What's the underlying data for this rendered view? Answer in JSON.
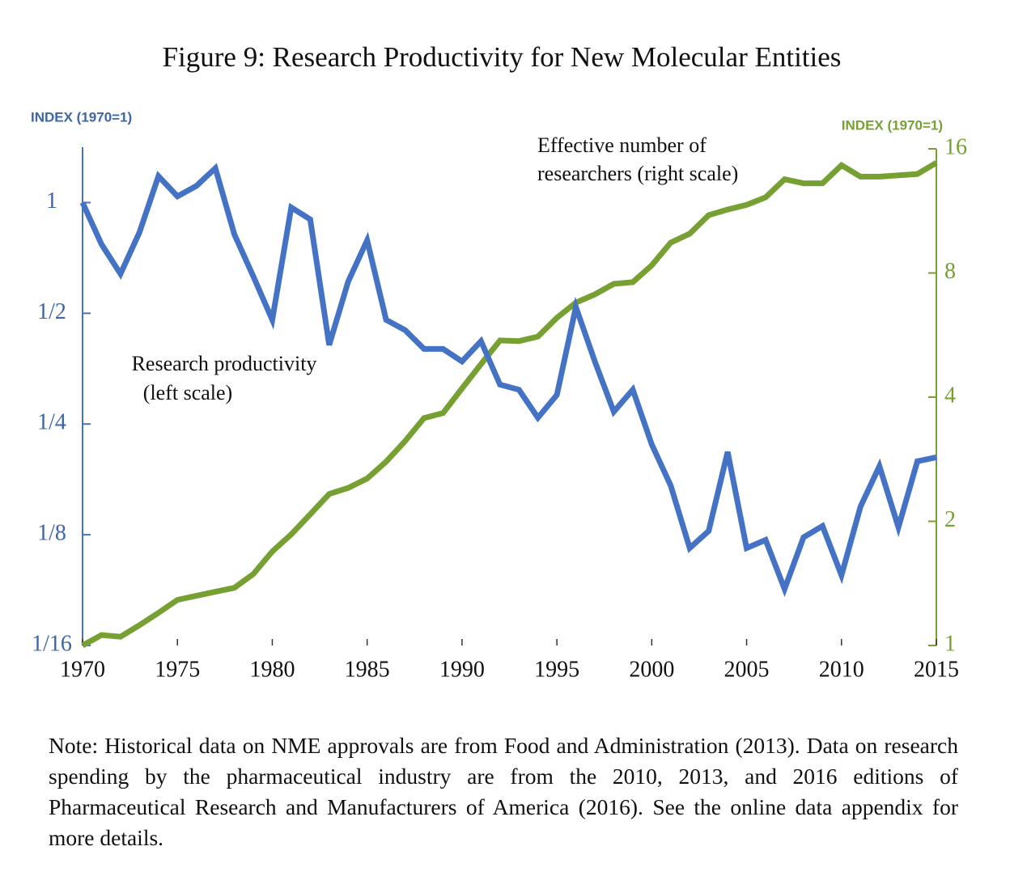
{
  "chart_data": {
    "type": "line",
    "title": "Figure 9: Research Productivity for New Molecular Entities",
    "y_label": "INDEX (1970=1)",
    "y2_label": "INDEX (1970=1)",
    "annotations": [
      {
        "lines": [
          "Effective number of",
          "researchers (right scale)"
        ]
      },
      {
        "lines": [
          "Research productivity",
          "(left scale)"
        ]
      }
    ],
    "x": [
      1970,
      1971,
      1972,
      1973,
      1974,
      1975,
      1976,
      1977,
      1978,
      1979,
      1980,
      1981,
      1982,
      1983,
      1984,
      1985,
      1986,
      1987,
      1988,
      1989,
      1990,
      1991,
      1992,
      1993,
      1994,
      1995,
      1996,
      1997,
      1998,
      1999,
      2000,
      2001,
      2002,
      2003,
      2004,
      2005,
      2006,
      2007,
      2008,
      2009,
      2010,
      2011,
      2012,
      2013,
      2014,
      2015
    ],
    "series": [
      {
        "name": "Research productivity",
        "color": "#4472c4",
        "axis": "y",
        "values": [
          1,
          0.77,
          0.64,
          0.83,
          1.18,
          1.04,
          1.11,
          1.24,
          0.82,
          0.63,
          0.48,
          0.97,
          0.9,
          0.41,
          0.61,
          0.79,
          0.48,
          0.45,
          0.4,
          0.4,
          0.37,
          0.42,
          0.32,
          0.31,
          0.26,
          0.3,
          0.52,
          0.37,
          0.27,
          0.31,
          0.22,
          0.17,
          0.115,
          0.128,
          0.21,
          0.115,
          0.121,
          0.089,
          0.123,
          0.132,
          0.097,
          0.149,
          0.192,
          0.131,
          0.198,
          0.203
        ]
      },
      {
        "name": "Effective number of researchers",
        "color": "#77a033",
        "axis": "y2",
        "values": [
          1,
          1.06,
          1.05,
          1.12,
          1.2,
          1.29,
          1.32,
          1.35,
          1.38,
          1.49,
          1.69,
          1.86,
          2.08,
          2.33,
          2.41,
          2.54,
          2.79,
          3.13,
          3.56,
          3.66,
          4.2,
          4.81,
          5.49,
          5.47,
          5.61,
          6.23,
          6.78,
          7.1,
          7.53,
          7.6,
          8.35,
          9.48,
          9.96,
          11.05,
          11.4,
          11.7,
          12.2,
          13.5,
          13.2,
          13.2,
          14.6,
          13.7,
          13.7,
          13.8,
          13.9,
          14.8
        ]
      }
    ],
    "xlim": [
      1970,
      2015
    ],
    "xticks": [
      1970,
      1975,
      1980,
      1985,
      1990,
      1995,
      2000,
      2005,
      2010,
      2015
    ],
    "ylim": [
      0.0625,
      1.4
    ],
    "yticks": [
      {
        "value": 0.0625,
        "label": "1/16"
      },
      {
        "value": 0.125,
        "label": "1/8"
      },
      {
        "value": 0.25,
        "label": "1/4"
      },
      {
        "value": 0.5,
        "label": "1/2"
      },
      1
    ],
    "y2lim": [
      1,
      16
    ],
    "y2ticks": [
      1,
      2,
      4,
      8,
      16
    ],
    "log_scale": true,
    "grid": false
  },
  "note": "Note: Historical data on NME approvals are from Food and Administration (2013). Data on research spending by the pharmaceutical industry are from the 2010, 2013, and 2016 editions of Pharmaceutical Research and Manufacturers of America (2016). See the online data appendix for more details."
}
